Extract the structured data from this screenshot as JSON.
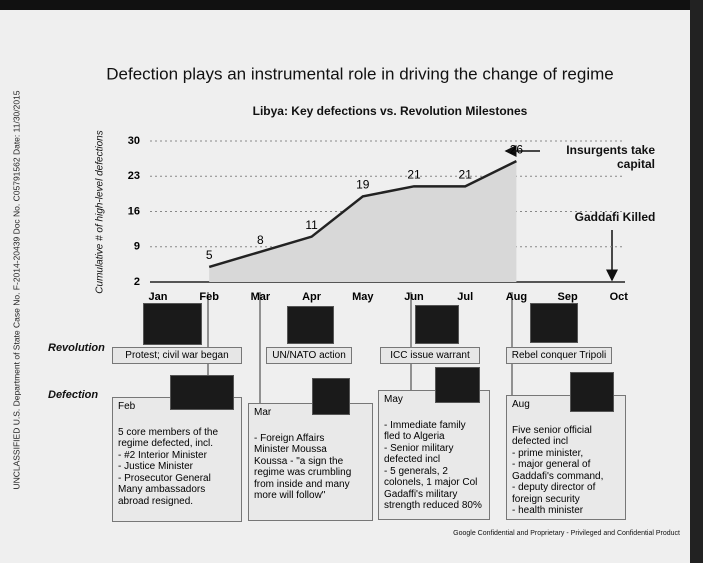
{
  "header": {
    "side_stamp": "UNCLASSIFIED U.S. Department of State Case No. F-2014-20439 Doc No. C05791562 Date: 11/30/2015",
    "title": "Defection plays an instrumental role in driving the change of regime"
  },
  "chart_data": {
    "type": "line",
    "title": "Libya: Key defections vs. Revolution Milestones",
    "y_label": "Cumulative # of high-level defections",
    "categories": [
      "Jan",
      "Feb",
      "Mar",
      "Apr",
      "May",
      "Jun",
      "Jul",
      "Aug",
      "Sep",
      "Oct"
    ],
    "values": [
      null,
      5,
      8,
      11,
      19,
      21,
      21,
      26,
      null,
      null
    ],
    "color": "#222222",
    "ylim": [
      2,
      30
    ],
    "yticks": [
      2,
      9,
      16,
      23,
      30
    ],
    "grid": true,
    "annotations": [
      "Insurgents take capital",
      "Gaddafi Killed"
    ]
  },
  "revolution": {
    "label": "Revolution",
    "milestones": [
      "Protest; civil war began",
      "UN/NATO action",
      "ICC issue warrant",
      "Rebel conquer Tripoli"
    ]
  },
  "defection": {
    "label": "Defection",
    "items": [
      {
        "month": "Feb",
        "lines": [
          "5 core members of the",
          "regime defected, incl.",
          "- #2 Interior Minister",
          "- Justice Minister",
          "- Prosecutor General",
          "Many ambassadors",
          "abroad resigned."
        ]
      },
      {
        "month": "Mar",
        "lines": [
          "- Foreign Affairs",
          "Minister Moussa",
          "Koussa - \"a sign the",
          "regime was crumbling",
          "from inside and many",
          "more will follow\""
        ]
      },
      {
        "month": "May",
        "lines": [
          "- Immediate family",
          "fled to Algeria",
          "- Senior military",
          "defected incl",
          "- 5 generals, 2",
          "colonels, 1 major Col",
          "Gadaffi's military",
          "strength reduced 80%"
        ]
      },
      {
        "month": "Aug",
        "lines": [
          "Five senior official",
          "defected incl",
          "- prime minister,",
          "- major general of",
          "Gaddafi's command,",
          "- deputy director of",
          "foreign security",
          "- health minister"
        ]
      }
    ]
  },
  "footer": "Google Confidential and Proprietary - Privileged and Confidential Product"
}
